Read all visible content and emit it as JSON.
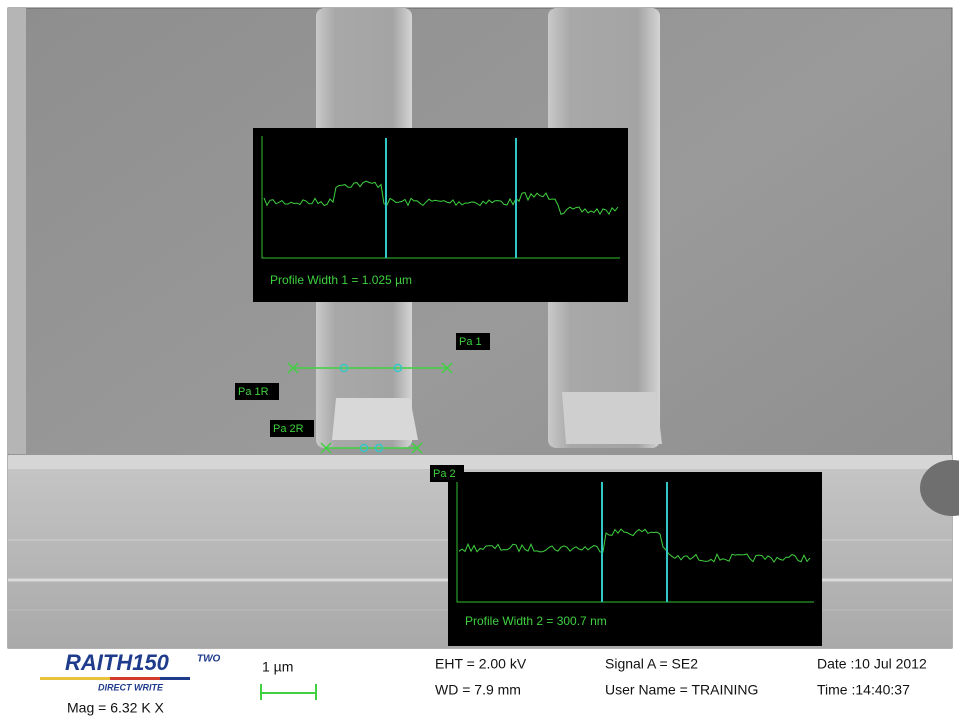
{
  "overlays": {
    "profile_1": {
      "label": "Profile Width 1 = 1.025 µm"
    },
    "profile_2": {
      "label": "Profile Width 2 = 300.7 nm"
    },
    "markers": [
      "Pa 1",
      "Pa 1R",
      "Pa 2R",
      "Pa 2"
    ]
  },
  "info_bar": {
    "logo": "RAITH150",
    "logo_sup": "TWO",
    "logo_sub": "DIRECT WRITE",
    "mag": "Mag =  6.32 K X",
    "scale": "1 µm",
    "eht": "EHT =  2.00 kV",
    "wd": "WD =  7.9 mm",
    "signal": "Signal A = SE2",
    "user": "User Name = TRAINING",
    "date": "Date :10 Jul 2012",
    "time": "Time :14:40:37"
  }
}
